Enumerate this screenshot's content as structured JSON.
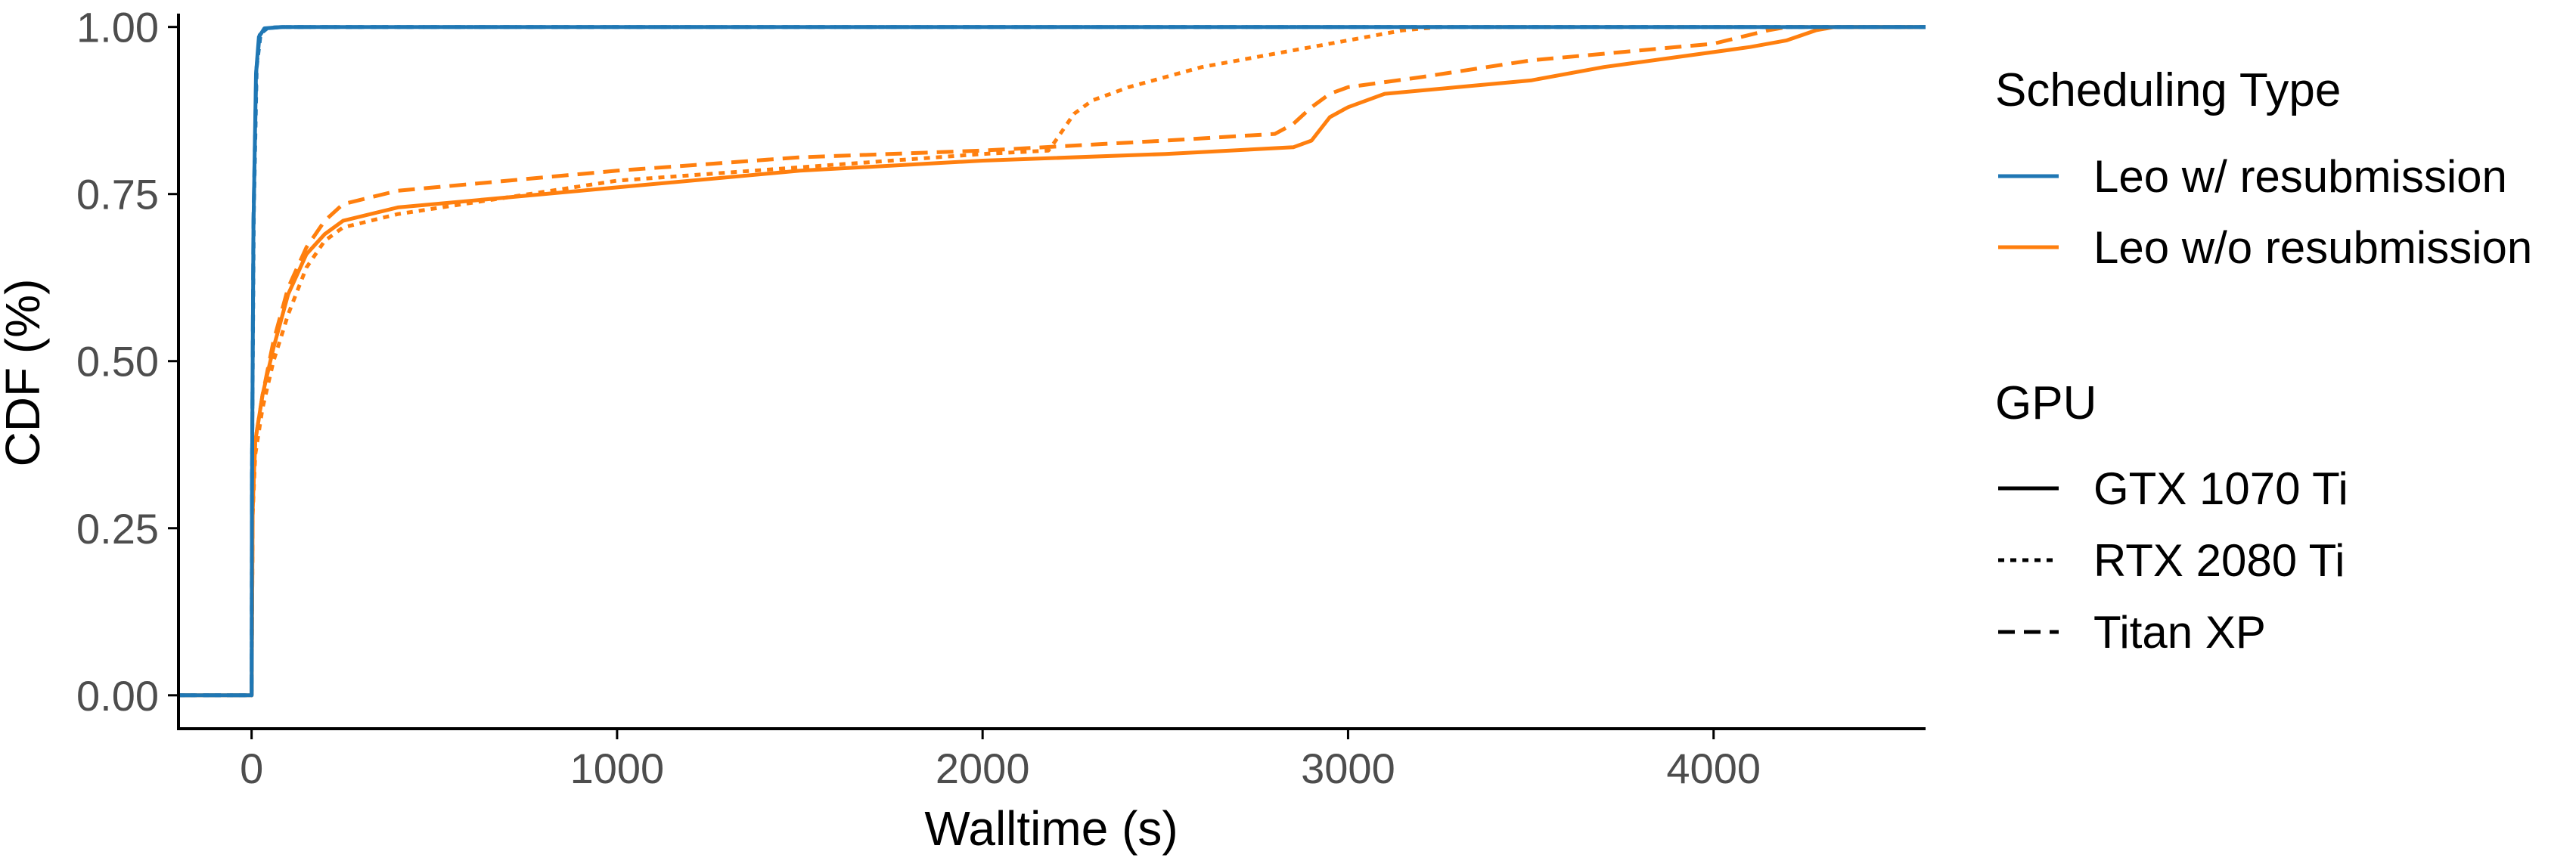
{
  "chart_data": {
    "type": "line",
    "title": "",
    "xlabel": "Walltime (s)",
    "ylabel": "CDF (%)",
    "xlim": [
      -200,
      4580
    ],
    "ylim": [
      -0.05,
      1.02
    ],
    "x_ticks": [
      0,
      1000,
      2000,
      3000,
      4000
    ],
    "x_tick_labels": [
      "0",
      "1000",
      "2000",
      "3000",
      "4000"
    ],
    "y_ticks": [
      0,
      0.25,
      0.5,
      0.75,
      1.0
    ],
    "y_tick_labels": [
      "0.00",
      "0.25",
      "0.50",
      "0.75",
      "1.00"
    ],
    "grid": false,
    "legend_position": "right",
    "colors": {
      "resub": "#1f77b4",
      "noresub": "#ff7f0e",
      "axis": "#000000",
      "tick_text": "#4d4d4d"
    },
    "legend": {
      "color": {
        "title": "Scheduling Type",
        "items": [
          {
            "label": "Leo w/ resubmission",
            "color": "#1f77b4"
          },
          {
            "label": "Leo w/o resubmission",
            "color": "#ff7f0e"
          }
        ]
      },
      "linetype": {
        "title": "GPU",
        "items": [
          {
            "label": "GTX 1070 Ti",
            "dash": "solid"
          },
          {
            "label": "RTX 2080 Ti",
            "dash": "dotted"
          },
          {
            "label": "Titan XP",
            "dash": "dashed"
          }
        ]
      }
    },
    "series": [
      {
        "scheduling": "Leo w/ resubmission",
        "gpu": "GTX 1070 Ti",
        "color": "#1f77b4",
        "dash": "solid",
        "points": [
          [
            -200,
            0
          ],
          [
            0,
            0
          ],
          [
            1,
            0.3
          ],
          [
            5,
            0.7
          ],
          [
            12,
            0.93
          ],
          [
            20,
            0.985
          ],
          [
            35,
            0.998
          ],
          [
            80,
            1.0
          ],
          [
            4580,
            1.0
          ]
        ]
      },
      {
        "scheduling": "Leo w/ resubmission",
        "gpu": "RTX 2080 Ti",
        "color": "#1f77b4",
        "dash": "dotted",
        "points": [
          [
            -200,
            0
          ],
          [
            0,
            0
          ],
          [
            1,
            0.32
          ],
          [
            6,
            0.72
          ],
          [
            14,
            0.94
          ],
          [
            25,
            0.99
          ],
          [
            45,
            0.999
          ],
          [
            90,
            1.0
          ],
          [
            4580,
            1.0
          ]
        ]
      },
      {
        "scheduling": "Leo w/ resubmission",
        "gpu": "Titan XP",
        "color": "#1f77b4",
        "dash": "dashed",
        "points": [
          [
            -200,
            0
          ],
          [
            0,
            0
          ],
          [
            1,
            0.31
          ],
          [
            5,
            0.71
          ],
          [
            13,
            0.935
          ],
          [
            22,
            0.988
          ],
          [
            40,
            0.998
          ],
          [
            85,
            1.0
          ],
          [
            4580,
            1.0
          ]
        ]
      },
      {
        "scheduling": "Leo w/o resubmission",
        "gpu": "GTX 1070 Ti",
        "color": "#ff7f0e",
        "dash": "solid",
        "points": [
          [
            -200,
            0
          ],
          [
            0,
            0
          ],
          [
            3,
            0.28
          ],
          [
            10,
            0.38
          ],
          [
            30,
            0.45
          ],
          [
            60,
            0.52
          ],
          [
            100,
            0.6
          ],
          [
            150,
            0.66
          ],
          [
            200,
            0.69
          ],
          [
            250,
            0.71
          ],
          [
            400,
            0.73
          ],
          [
            1000,
            0.76
          ],
          [
            1500,
            0.785
          ],
          [
            2000,
            0.8
          ],
          [
            2500,
            0.81
          ],
          [
            2850,
            0.82
          ],
          [
            2900,
            0.83
          ],
          [
            2950,
            0.865
          ],
          [
            3000,
            0.88
          ],
          [
            3100,
            0.9
          ],
          [
            3300,
            0.91
          ],
          [
            3500,
            0.92
          ],
          [
            3700,
            0.94
          ],
          [
            3900,
            0.955
          ],
          [
            4100,
            0.97
          ],
          [
            4200,
            0.98
          ],
          [
            4280,
            0.995
          ],
          [
            4330,
            1.0
          ],
          [
            4580,
            1.0
          ]
        ]
      },
      {
        "scheduling": "Leo w/o resubmission",
        "gpu": "RTX 2080 Ti",
        "color": "#ff7f0e",
        "dash": "dotted",
        "points": [
          [
            -200,
            0
          ],
          [
            0,
            0
          ],
          [
            3,
            0.27
          ],
          [
            10,
            0.36
          ],
          [
            30,
            0.43
          ],
          [
            60,
            0.5
          ],
          [
            100,
            0.57
          ],
          [
            150,
            0.64
          ],
          [
            200,
            0.68
          ],
          [
            250,
            0.7
          ],
          [
            400,
            0.72
          ],
          [
            1000,
            0.77
          ],
          [
            1500,
            0.79
          ],
          [
            2000,
            0.81
          ],
          [
            2180,
            0.815
          ],
          [
            2200,
            0.83
          ],
          [
            2250,
            0.87
          ],
          [
            2300,
            0.89
          ],
          [
            2400,
            0.91
          ],
          [
            2600,
            0.94
          ],
          [
            2800,
            0.96
          ],
          [
            3000,
            0.98
          ],
          [
            3150,
            0.995
          ],
          [
            3250,
            1.0
          ],
          [
            4580,
            1.0
          ]
        ]
      },
      {
        "scheduling": "Leo w/o resubmission",
        "gpu": "Titan XP",
        "color": "#ff7f0e",
        "dash": "dashed",
        "points": [
          [
            -200,
            0
          ],
          [
            0,
            0
          ],
          [
            3,
            0.28
          ],
          [
            10,
            0.38
          ],
          [
            30,
            0.45
          ],
          [
            60,
            0.53
          ],
          [
            100,
            0.61
          ],
          [
            150,
            0.67
          ],
          [
            200,
            0.71
          ],
          [
            250,
            0.735
          ],
          [
            400,
            0.755
          ],
          [
            1000,
            0.785
          ],
          [
            1500,
            0.805
          ],
          [
            2000,
            0.815
          ],
          [
            2500,
            0.83
          ],
          [
            2800,
            0.84
          ],
          [
            2850,
            0.855
          ],
          [
            2900,
            0.88
          ],
          [
            2950,
            0.9
          ],
          [
            3000,
            0.91
          ],
          [
            3200,
            0.925
          ],
          [
            3500,
            0.95
          ],
          [
            3800,
            0.965
          ],
          [
            4000,
            0.975
          ],
          [
            4150,
            0.995
          ],
          [
            4200,
            1.0
          ],
          [
            4580,
            1.0
          ]
        ]
      }
    ]
  }
}
